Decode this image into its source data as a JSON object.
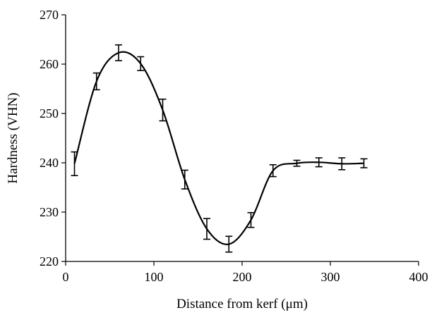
{
  "chart_data": {
    "type": "line",
    "title": "",
    "xlabel": "Distance from kerf (μm)",
    "ylabel": "Hardness (VHN)",
    "xlim": [
      0,
      400
    ],
    "ylim": [
      220,
      270
    ],
    "x_ticks": [
      0,
      100,
      200,
      300,
      400
    ],
    "y_ticks": [
      220,
      230,
      240,
      250,
      260,
      270
    ],
    "x_tick_labels": [
      "0",
      "100",
      "200",
      "300",
      "400"
    ],
    "y_tick_labels": [
      "220",
      "230",
      "240",
      "250",
      "260",
      "270"
    ],
    "grid": false,
    "legend": "none",
    "smoothed": true,
    "series": [
      {
        "x": [
          10,
          35,
          60,
          85,
          110,
          135,
          160,
          185,
          210,
          235,
          262,
          287,
          313,
          338
        ],
        "y": [
          239.8,
          256.5,
          262.3,
          260.1,
          250.7,
          236.6,
          226.6,
          223.5,
          228.4,
          238.4,
          239.9,
          240.1,
          239.8,
          239.9
        ],
        "error": [
          2.4,
          1.7,
          1.6,
          1.4,
          2.2,
          1.9,
          2.1,
          1.6,
          1.5,
          1.2,
          0.6,
          0.9,
          1.2,
          0.9
        ]
      }
    ],
    "colors": {
      "line": "#000000",
      "axis": "#000000"
    }
  }
}
